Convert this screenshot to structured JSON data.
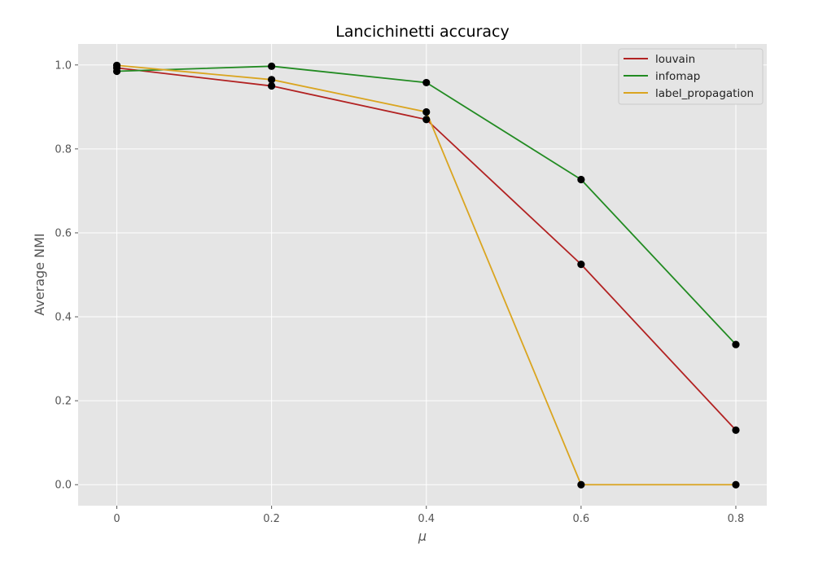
{
  "chart_data": {
    "type": "line",
    "title": "Lancichinetti accuracy",
    "xlabel": "μ",
    "ylabel": "Average NMI",
    "x": [
      0,
      0.2,
      0.4,
      0.6,
      0.8
    ],
    "xticks": [
      0,
      0.2,
      0.4,
      0.6,
      0.8
    ],
    "xtick_labels": [
      "0",
      "0.2",
      "0.4",
      "0.6",
      "0.8"
    ],
    "yticks": [
      0.0,
      0.2,
      0.4,
      0.6,
      0.8,
      1.0
    ],
    "ytick_labels": [
      "0.0",
      "0.2",
      "0.4",
      "0.6",
      "0.8",
      "1.0"
    ],
    "xlim": [
      -0.05,
      0.84
    ],
    "ylim": [
      -0.05,
      1.05
    ],
    "grid": true,
    "legend_position": "top-right",
    "background": "#e5e5e5",
    "marker_color": "#000000",
    "series": [
      {
        "name": "louvain",
        "color": "#b22222",
        "values": [
          0.993,
          0.95,
          0.87,
          0.525,
          0.13
        ]
      },
      {
        "name": "infomap",
        "color": "#228b22",
        "values": [
          0.985,
          0.997,
          0.958,
          0.727,
          0.334
        ]
      },
      {
        "name": "label_propagation",
        "color": "#daa520",
        "values": [
          0.999,
          0.965,
          0.888,
          0.0,
          0.0
        ]
      }
    ]
  }
}
